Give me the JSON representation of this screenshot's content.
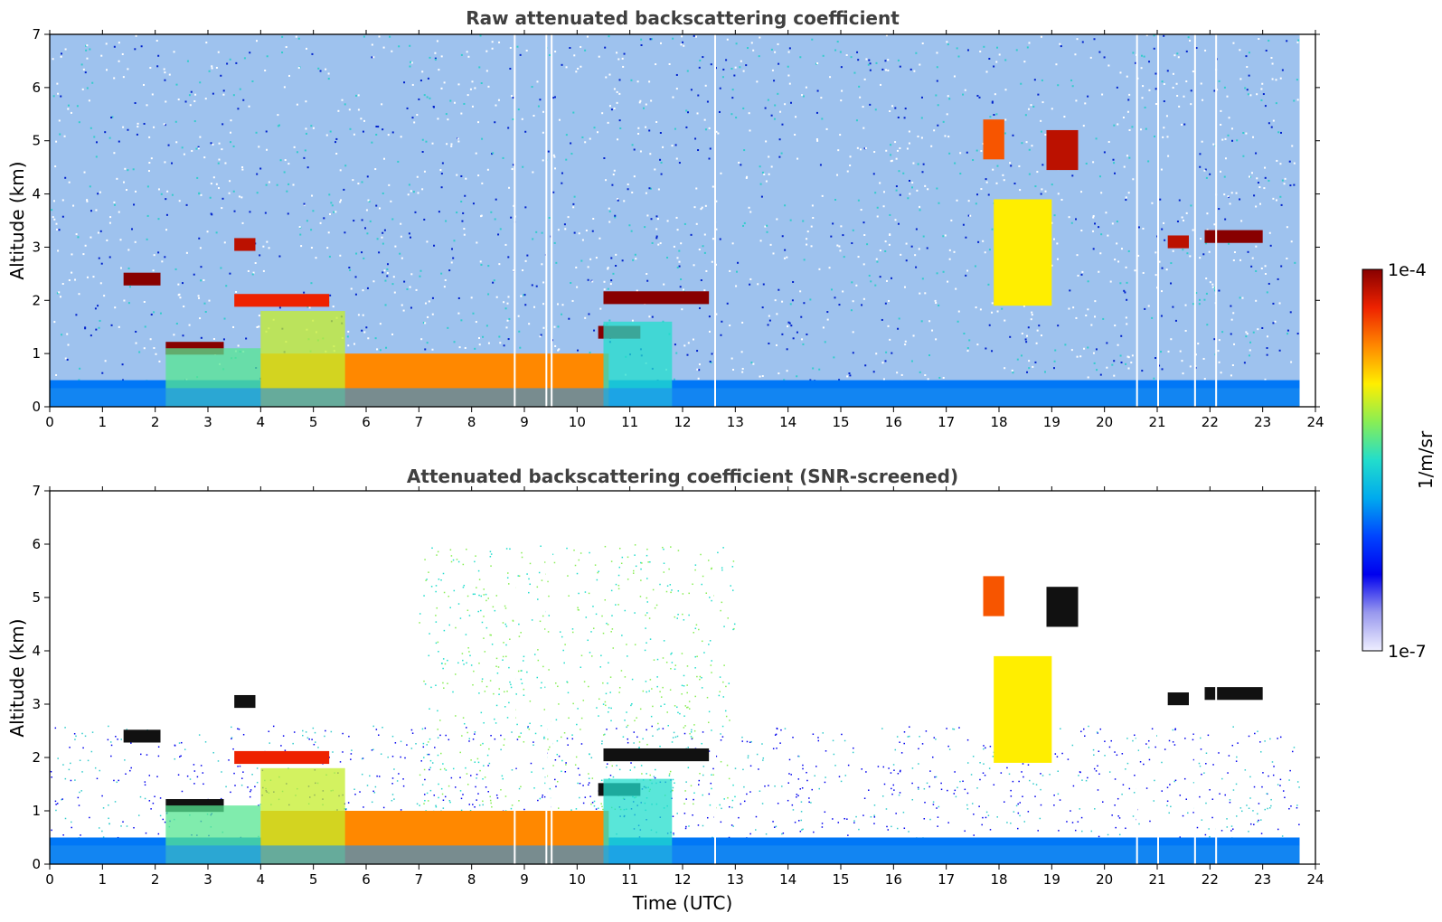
{
  "chart_data": [
    {
      "type": "heatmap",
      "title": "Raw attenuated backscattering coefficient",
      "xlabel": "",
      "ylabel": "Altitude (km)",
      "xlim": [
        0,
        24
      ],
      "ylim": [
        0,
        7
      ],
      "xticks": [
        "0",
        "1",
        "2",
        "3",
        "4",
        "5",
        "6",
        "7",
        "8",
        "9",
        "10",
        "11",
        "12",
        "13",
        "14",
        "15",
        "16",
        "17",
        "18",
        "19",
        "20",
        "21",
        "22",
        "23",
        "24"
      ],
      "yticks": [
        "0",
        "1",
        "2",
        "3",
        "4",
        "5",
        "6",
        "7"
      ],
      "screened": false
    },
    {
      "type": "heatmap",
      "title": "Attenuated backscattering coefficient (SNR-screened)",
      "xlabel": "Time (UTC)",
      "ylabel": "Altitude (km)",
      "xlim": [
        0,
        24
      ],
      "ylim": [
        0,
        7
      ],
      "xticks": [
        "0",
        "1",
        "2",
        "3",
        "4",
        "5",
        "6",
        "7",
        "8",
        "9",
        "10",
        "11",
        "12",
        "13",
        "14",
        "15",
        "16",
        "17",
        "18",
        "19",
        "20",
        "21",
        "22",
        "23",
        "24"
      ],
      "yticks": [
        "0",
        "1",
        "2",
        "3",
        "4",
        "5",
        "6",
        "7"
      ],
      "screened": true
    }
  ],
  "colorbar": {
    "label": "1/m/sr",
    "max_label": "1e-4",
    "min_label": "1e-7",
    "colors": [
      "#eeeeff",
      "#9999ee",
      "#0000ee",
      "#0044ff",
      "#00aaee",
      "#22ddcc",
      "#88ee55",
      "#ffee00",
      "#ff8800",
      "#ee2200",
      "#880000"
    ]
  },
  "features": [
    {
      "name": "boundary-layer-aerosol",
      "t_start": 0,
      "t_end": 23.7,
      "alt_top_km": 0.5,
      "level": 0.35
    },
    {
      "name": "dense-aerosol-layer",
      "t_start": 4.0,
      "t_end": 10.6,
      "alt_top_km": 1.0,
      "level": 0.8
    },
    {
      "name": "cloud-layer-a",
      "t_start": 1.4,
      "t_end": 2.1,
      "alt_km": 2.4,
      "level": 1.0
    },
    {
      "name": "cloud-layer-b",
      "t_start": 2.2,
      "t_end": 3.3,
      "alt_km": 1.1,
      "level": 1.0
    },
    {
      "name": "cloud-layer-c",
      "t_start": 3.5,
      "t_end": 5.3,
      "alt_km": 2.0,
      "level": 0.9
    },
    {
      "name": "cloud-layer-d",
      "t_start": 3.5,
      "t_end": 3.9,
      "alt_km": 3.05,
      "level": 0.95
    },
    {
      "name": "cloud-layer-e",
      "t_start": 10.5,
      "t_end": 12.5,
      "alt_km": 2.05,
      "level": 1.0
    },
    {
      "name": "cloud-layer-f",
      "t_start": 10.4,
      "t_end": 11.2,
      "alt_km": 1.4,
      "level": 1.0
    },
    {
      "name": "cirrus-a",
      "t_start": 17.7,
      "t_end": 18.1,
      "alt_km": 5.0,
      "level": 0.85
    },
    {
      "name": "cirrus-b",
      "t_start": 18.9,
      "t_end": 19.5,
      "alt_km": 4.8,
      "level": 0.95
    },
    {
      "name": "cirrus-fall-streak",
      "t_start": 17.9,
      "t_end": 19.0,
      "alt_km": 3.0,
      "level": 0.7
    },
    {
      "name": "cloud-layer-g",
      "t_start": 21.2,
      "t_end": 21.6,
      "alt_km": 3.1,
      "level": 0.95
    },
    {
      "name": "cloud-layer-h",
      "t_start": 21.9,
      "t_end": 23.0,
      "alt_km": 3.2,
      "level": 1.0
    }
  ]
}
